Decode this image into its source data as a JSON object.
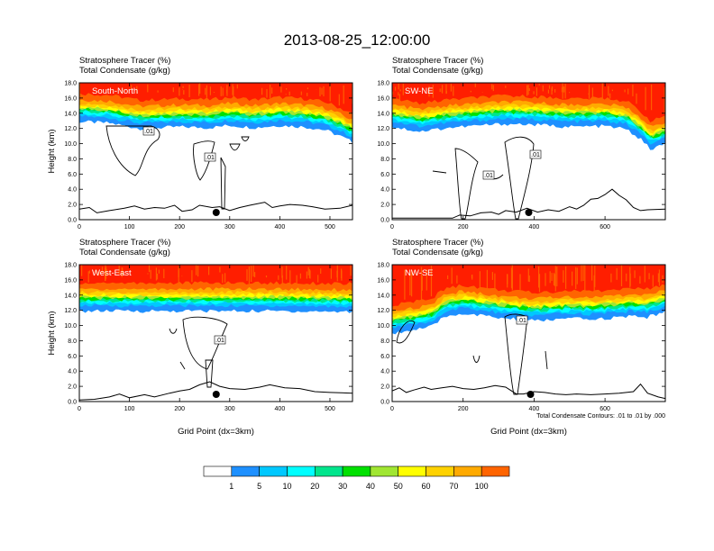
{
  "title": "2013-08-25_12:00:00",
  "colors": {
    "palette": [
      "#ffffff",
      "#1e90ff",
      "#00c8ff",
      "#00ffff",
      "#00e58c",
      "#00e000",
      "#a0e632",
      "#ffff00",
      "#ffd200",
      "#ffaa00",
      "#ff6400",
      "#ff1e00"
    ],
    "line": "#000000"
  },
  "chart_data": [
    {
      "type": "heatmap",
      "panel_label": "South-North",
      "title_line1": "Stratosphere Tracer   (%)",
      "title_line2": "Total Condensate   (g/kg)",
      "ylabel": "Height (km)",
      "xlabel": "",
      "xlim": [
        0,
        545
      ],
      "ylim": [
        0,
        18
      ],
      "xticks": [
        "0",
        "100",
        "200",
        "300",
        "400",
        "500"
      ],
      "yticks": [
        "0.0",
        "2.0",
        "4.0",
        "6.0",
        "8.0",
        "10.0",
        "12.0",
        "14.0",
        "16.0",
        "18.0"
      ],
      "tropopause_km": [
        [
          0,
          14.3
        ],
        [
          60,
          14.1
        ],
        [
          120,
          13.4
        ],
        [
          200,
          13.6
        ],
        [
          260,
          13.5
        ],
        [
          300,
          13.8
        ],
        [
          350,
          13.5
        ],
        [
          400,
          13.8
        ],
        [
          450,
          13.6
        ],
        [
          490,
          13.2
        ],
        [
          520,
          12.4
        ],
        [
          545,
          11.6
        ]
      ],
      "terrain_km": [
        [
          0,
          1.4
        ],
        [
          20,
          1.6
        ],
        [
          35,
          0.9
        ],
        [
          60,
          1.2
        ],
        [
          90,
          1.5
        ],
        [
          110,
          1.8
        ],
        [
          130,
          1.4
        ],
        [
          150,
          1.6
        ],
        [
          170,
          1.5
        ],
        [
          190,
          1.9
        ],
        [
          205,
          1.1
        ],
        [
          225,
          1.3
        ],
        [
          240,
          1.9
        ],
        [
          265,
          1.6
        ],
        [
          280,
          1.7
        ],
        [
          300,
          1.2
        ],
        [
          320,
          1.6
        ],
        [
          340,
          1.9
        ],
        [
          370,
          2.3
        ],
        [
          385,
          1.6
        ],
        [
          400,
          1.8
        ],
        [
          420,
          2.0
        ],
        [
          445,
          1.9
        ],
        [
          465,
          1.7
        ],
        [
          490,
          1.4
        ],
        [
          520,
          1.5
        ],
        [
          545,
          1.9
        ]
      ],
      "marker_x": 273,
      "contour_labels": [
        ".01",
        ".01"
      ]
    },
    {
      "type": "heatmap",
      "panel_label": "SW-NE",
      "title_line1": "Stratosphere Tracer   (%)",
      "title_line2": "Total Condensate   (g/kg)",
      "ylabel": "",
      "xlabel": "",
      "xlim": [
        0,
        770
      ],
      "ylim": [
        0,
        18
      ],
      "xticks": [
        "0",
        "200",
        "400",
        "600"
      ],
      "yticks": [
        "0.0",
        "2.0",
        "4.0",
        "6.0",
        "8.0",
        "10.0",
        "12.0",
        "14.0",
        "16.0",
        "18.0"
      ],
      "tropopause_km": [
        [
          0,
          13.6
        ],
        [
          80,
          13.0
        ],
        [
          160,
          13.5
        ],
        [
          250,
          13.8
        ],
        [
          320,
          14.0
        ],
        [
          400,
          13.9
        ],
        [
          500,
          13.6
        ],
        [
          600,
          13.7
        ],
        [
          660,
          13.3
        ],
        [
          700,
          12.0
        ],
        [
          730,
          10.6
        ],
        [
          770,
          11.4
        ]
      ],
      "terrain_km": [
        [
          0,
          0.2
        ],
        [
          60,
          0.2
        ],
        [
          120,
          0.2
        ],
        [
          170,
          0.2
        ],
        [
          190,
          0.6
        ],
        [
          220,
          0.5
        ],
        [
          250,
          0.9
        ],
        [
          280,
          1.0
        ],
        [
          300,
          0.7
        ],
        [
          320,
          1.2
        ],
        [
          350,
          1.0
        ],
        [
          380,
          1.5
        ],
        [
          410,
          1.0
        ],
        [
          440,
          1.3
        ],
        [
          470,
          1.1
        ],
        [
          500,
          1.7
        ],
        [
          520,
          1.4
        ],
        [
          540,
          1.9
        ],
        [
          560,
          2.7
        ],
        [
          580,
          2.8
        ],
        [
          600,
          3.3
        ],
        [
          620,
          4.0
        ],
        [
          640,
          3.2
        ],
        [
          660,
          2.6
        ],
        [
          680,
          1.6
        ],
        [
          700,
          1.2
        ],
        [
          720,
          1.3
        ],
        [
          770,
          1.4
        ]
      ],
      "marker_x": 385,
      "contour_labels": [
        ".01",
        ".01"
      ]
    },
    {
      "type": "heatmap",
      "panel_label": "West-East",
      "title_line1": "Stratosphere Tracer   (%)",
      "title_line2": "Total Condensate   (g/kg)",
      "ylabel": "Height (km)",
      "xlabel": "Grid Point (dx=3km)",
      "xlim": [
        0,
        545
      ],
      "ylim": [
        0,
        18
      ],
      "xticks": [
        "0",
        "100",
        "200",
        "300",
        "400",
        "500"
      ],
      "yticks": [
        "0.0",
        "2.0",
        "4.0",
        "6.0",
        "8.0",
        "10.0",
        "12.0",
        "14.0",
        "16.0",
        "18.0"
      ],
      "tropopause_km": [
        [
          0,
          13.3
        ],
        [
          100,
          13.3
        ],
        [
          200,
          13.3
        ],
        [
          300,
          13.3
        ],
        [
          400,
          13.3
        ],
        [
          545,
          13.2
        ]
      ],
      "terrain_km": [
        [
          0,
          0.2
        ],
        [
          30,
          0.3
        ],
        [
          60,
          0.6
        ],
        [
          80,
          1.0
        ],
        [
          100,
          0.5
        ],
        [
          130,
          0.9
        ],
        [
          150,
          0.6
        ],
        [
          180,
          1.1
        ],
        [
          200,
          1.4
        ],
        [
          220,
          1.6
        ],
        [
          240,
          2.2
        ],
        [
          260,
          2.6
        ],
        [
          280,
          2.0
        ],
        [
          300,
          1.7
        ],
        [
          330,
          1.6
        ],
        [
          360,
          1.9
        ],
        [
          380,
          2.2
        ],
        [
          410,
          1.8
        ],
        [
          440,
          1.7
        ],
        [
          470,
          1.3
        ],
        [
          500,
          1.2
        ],
        [
          545,
          1.1
        ]
      ],
      "marker_x": 273,
      "contour_labels": [
        ".01"
      ]
    },
    {
      "type": "heatmap",
      "panel_label": "NW-SE",
      "title_line1": "Stratosphere Tracer   (%)",
      "title_line2": "Total Condensate   (g/kg)",
      "ylabel": "",
      "xlabel": "Grid Point (dx=3km)",
      "xlim": [
        0,
        770
      ],
      "ylim": [
        0,
        18
      ],
      "xticks": [
        "0",
        "200",
        "400",
        "600"
      ],
      "yticks": [
        "0.0",
        "2.0",
        "4.0",
        "6.0",
        "8.0",
        "10.0",
        "12.0",
        "14.0",
        "16.0",
        "18.0"
      ],
      "tropopause_km": [
        [
          0,
          10.4
        ],
        [
          60,
          10.8
        ],
        [
          110,
          11.2
        ],
        [
          150,
          12.6
        ],
        [
          200,
          13.0
        ],
        [
          300,
          12.4
        ],
        [
          400,
          12.0
        ],
        [
          500,
          12.3
        ],
        [
          560,
          12.2
        ],
        [
          620,
          12.4
        ],
        [
          680,
          12.6
        ],
        [
          720,
          12.5
        ],
        [
          770,
          13.2
        ]
      ],
      "terrain_km": [
        [
          0,
          1.4
        ],
        [
          20,
          1.8
        ],
        [
          40,
          1.2
        ],
        [
          60,
          1.5
        ],
        [
          90,
          1.9
        ],
        [
          110,
          1.6
        ],
        [
          140,
          1.8
        ],
        [
          170,
          2.0
        ],
        [
          200,
          1.7
        ],
        [
          230,
          1.6
        ],
        [
          260,
          1.8
        ],
        [
          290,
          2.1
        ],
        [
          320,
          1.9
        ],
        [
          350,
          1.0
        ],
        [
          370,
          1.0
        ],
        [
          400,
          1.3
        ],
        [
          430,
          1.2
        ],
        [
          460,
          1.0
        ],
        [
          490,
          0.9
        ],
        [
          520,
          1.0
        ],
        [
          560,
          0.9
        ],
        [
          600,
          1.0
        ],
        [
          640,
          1.1
        ],
        [
          680,
          1.3
        ],
        [
          700,
          2.3
        ],
        [
          720,
          1.1
        ],
        [
          750,
          0.6
        ],
        [
          770,
          0.4
        ]
      ],
      "marker_x": 390,
      "contour_labels": [
        ".01"
      ]
    }
  ],
  "footnote": "Total Condensate Contours: .01 to .01 by .000",
  "colorbar": {
    "labels": [
      "1",
      "5",
      "10",
      "20",
      "30",
      "40",
      "50",
      "60",
      "70",
      "100"
    ]
  }
}
